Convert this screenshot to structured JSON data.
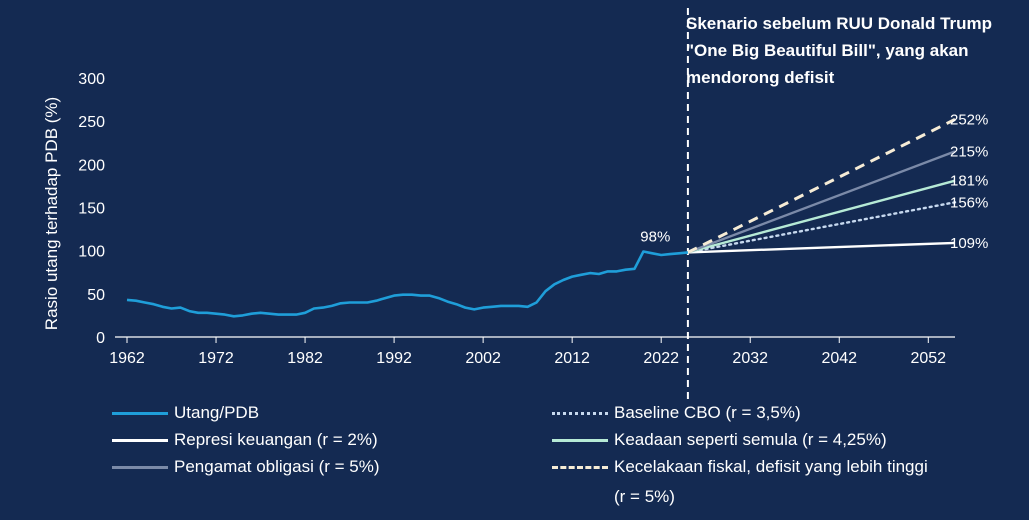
{
  "chart_data": {
    "type": "line",
    "ylabel": "Rasio utang terhadap PDB (%)",
    "xlabel": "",
    "x_ticks": [
      "1962",
      "1972",
      "1982",
      "1992",
      "2002",
      "2012",
      "2022",
      "2032",
      "2042",
      "2052"
    ],
    "y_ticks": [
      "0",
      "50",
      "100",
      "150",
      "200",
      "250",
      "300"
    ],
    "xlim": [
      1962,
      2055
    ],
    "ylim": [
      0,
      300
    ],
    "divider_year": 2025,
    "annotation": "Skenario sebelum RUU Donald Trump \"One Big Beautiful Bill\", yang akan mendorong defisit",
    "series": [
      {
        "name": "Utang/PDB",
        "color": "#1f9ed9",
        "style": "solid",
        "point_label": "98%",
        "x": [
          1962,
          1963,
          1964,
          1965,
          1966,
          1967,
          1968,
          1969,
          1970,
          1971,
          1972,
          1973,
          1974,
          1975,
          1976,
          1977,
          1978,
          1979,
          1980,
          1981,
          1982,
          1983,
          1984,
          1985,
          1986,
          1987,
          1988,
          1989,
          1990,
          1991,
          1992,
          1993,
          1994,
          1995,
          1996,
          1997,
          1998,
          1999,
          2000,
          2001,
          2002,
          2003,
          2004,
          2005,
          2006,
          2007,
          2008,
          2009,
          2010,
          2011,
          2012,
          2013,
          2014,
          2015,
          2016,
          2017,
          2018,
          2019,
          2020,
          2021,
          2022,
          2023,
          2024,
          2025
        ],
        "y": [
          43,
          42,
          40,
          38,
          35,
          33,
          34,
          30,
          28,
          28,
          27,
          26,
          24,
          25,
          27,
          28,
          27,
          26,
          26,
          26,
          28,
          33,
          34,
          36,
          39,
          40,
          40,
          40,
          42,
          45,
          48,
          49,
          49,
          48,
          48,
          45,
          41,
          38,
          34,
          32,
          34,
          35,
          36,
          36,
          36,
          35,
          40,
          53,
          61,
          66,
          70,
          72,
          74,
          73,
          76,
          76,
          78,
          79,
          99,
          97,
          95,
          96,
          97,
          98
        ]
      },
      {
        "name": "Baseline CBO (r = 3,5%)",
        "color": "#c7d9ef",
        "style": "dotted",
        "end_label": "156%",
        "x": [
          2025,
          2055
        ],
        "y": [
          98,
          156
        ]
      },
      {
        "name": "Represi keuangan (r = 2%)",
        "color": "#ffffff",
        "style": "solid",
        "end_label": "109%",
        "x": [
          2025,
          2055
        ],
        "y": [
          98,
          109
        ]
      },
      {
        "name": "Keadaan seperti semula (r = 4,25%)",
        "color": "#b6ead6",
        "style": "solid",
        "end_label": "181%",
        "x": [
          2025,
          2055
        ],
        "y": [
          98,
          181
        ]
      },
      {
        "name": "Pengamat obligasi (r = 5%)",
        "color": "#7b8aa8",
        "style": "solid",
        "end_label": "215%",
        "x": [
          2025,
          2055
        ],
        "y": [
          98,
          215
        ]
      },
      {
        "name": "Kecelakaan fiskal, defisit yang lebih tinggi (r = 5%)",
        "color": "#f6ecd6",
        "style": "dashed",
        "end_label": "252%",
        "x": [
          2025,
          2055
        ],
        "y": [
          98,
          252
        ]
      }
    ]
  },
  "legend": [
    {
      "label": "Utang/PDB",
      "color": "#1f9ed9",
      "style": "solid"
    },
    {
      "label": "Baseline CBO (r = 3,5%)",
      "color": "#c7d9ef",
      "style": "dotted"
    },
    {
      "label": "Represi keuangan (r = 2%)",
      "color": "#ffffff",
      "style": "solid"
    },
    {
      "label": "Keadaan seperti semula (r = 4,25%)",
      "color": "#b6ead6",
      "style": "solid"
    },
    {
      "label": "Pengamat obligasi (r = 5%)",
      "color": "#7b8aa8",
      "style": "solid"
    },
    {
      "label": "Kecelakaan fiskal, defisit yang lebih tinggi (r = 5%)",
      "color": "#f6ecd6",
      "style": "dashed"
    }
  ]
}
